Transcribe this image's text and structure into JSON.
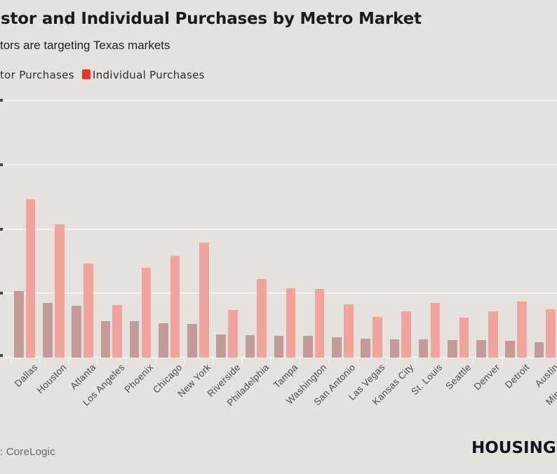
{
  "page": {
    "background": "#e5e2dd"
  },
  "header": {
    "title": "stor and Individual Purchases by Metro Market",
    "subtitle": "tors are targeting Texas markets"
  },
  "legend": {
    "items": [
      {
        "label": "tor Purchases",
        "swatch_color": null
      },
      {
        "label": "Individual Purchases",
        "swatch_color": "#ee3223"
      }
    ]
  },
  "footer": {
    "source": ": CoreLogic",
    "logo": "HOUSINGW"
  },
  "colors": {
    "background": "#e5e2dd",
    "gridline": "#f3f0ec",
    "axis_tick_stub": "#454545",
    "x_tick": "#f1eee9",
    "investor_bar": "#c49b98",
    "individual_bar": "#efa49e",
    "legend_red": "#ee3223"
  },
  "chart_data": {
    "type": "bar",
    "title": "stor and Individual Purchases by Metro Market",
    "subtitle": "tors are targeting Texas markets",
    "note": "Grouped bar chart. Left edge of image is cropped: y-axis tick labels are cut off, so values are expressed in units of one horizontal gridline interval (5 ticks from 0 at baseline to 4 at top gridline). Minneapolis bars fall outside the cropped right edge (label partially visible).",
    "categories": [
      "Dallas",
      "Houston",
      "Atlanta",
      "Los Angeles",
      "Phoenix",
      "Chicago",
      "New York",
      "Riverside",
      "Philadelphia",
      "Tampa",
      "Washington",
      "San Antonio",
      "Las Vegas",
      "Kansas City",
      "St. Louis",
      "Seattle",
      "Denver",
      "Detroit",
      "Austin",
      "Minneapolis"
    ],
    "series": [
      {
        "name": "Investor Purchases",
        "color": "#c49b98",
        "values": [
          1.04,
          0.85,
          0.81,
          0.57,
          0.57,
          0.53,
          0.52,
          0.36,
          0.35,
          0.34,
          0.34,
          0.32,
          0.29,
          0.28,
          0.28,
          0.27,
          0.27,
          0.26,
          0.24,
          null
        ]
      },
      {
        "name": "Individual Purchases",
        "color": "#efa49e",
        "values": [
          2.46,
          2.07,
          1.46,
          0.82,
          1.4,
          1.58,
          1.79,
          0.74,
          1.22,
          1.08,
          1.07,
          0.83,
          0.63,
          0.72,
          0.85,
          0.62,
          0.72,
          0.87,
          0.75,
          null
        ]
      }
    ],
    "xlabel": "",
    "ylabel": "",
    "ylim": [
      0,
      4
    ],
    "y_ticks": [
      0,
      1,
      2,
      3,
      4
    ],
    "y_tick_labels_visible": false,
    "grid": "horizontal",
    "legend_position": "top-left",
    "source": ": CoreLogic"
  }
}
